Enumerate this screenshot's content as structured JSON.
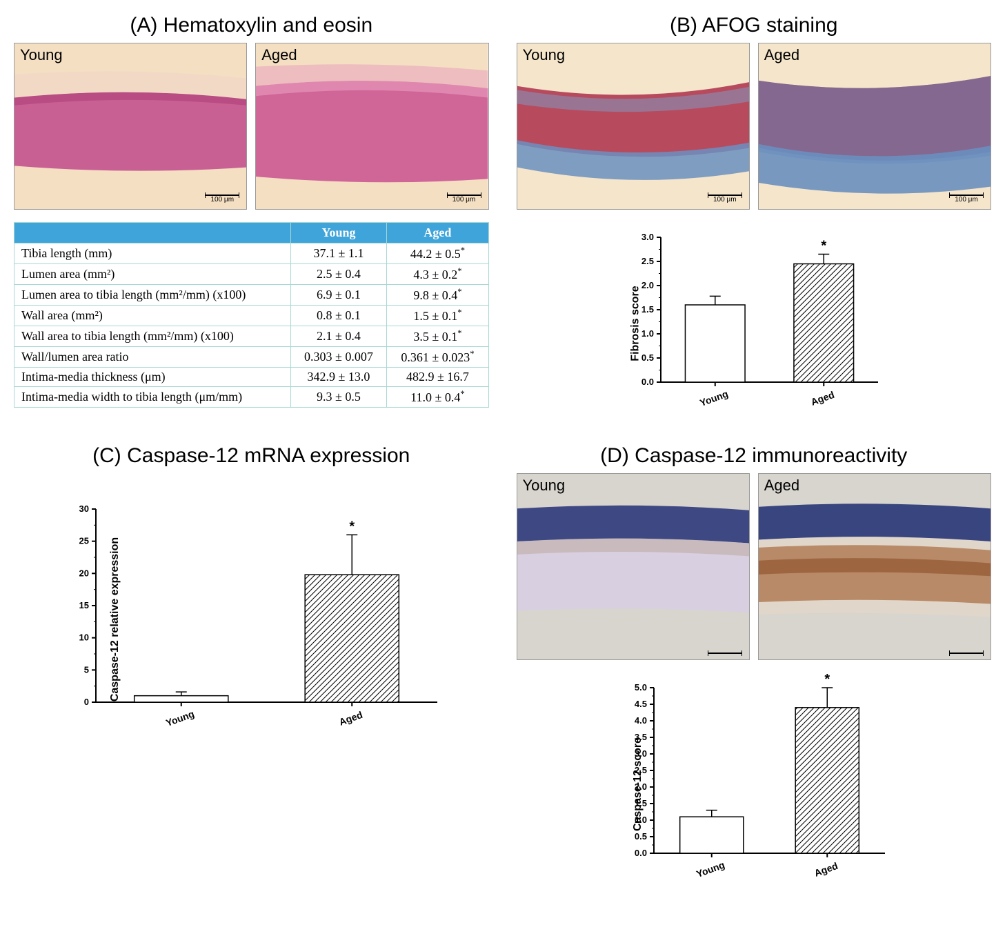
{
  "panelA": {
    "title": "(A) Hematoxylin and eosin",
    "young_label": "Young",
    "aged_label": "Aged",
    "young_bg": "#f4dfc2",
    "aged_bg": "#f4dfc2",
    "young_band": "#d66a9a",
    "aged_band": "#d66a9a",
    "scale_text": "100 μm",
    "table": {
      "headers": [
        "",
        "Young",
        "Aged"
      ],
      "rows": [
        [
          "Tibia length (mm)",
          "37.1 ± 1.1",
          "44.2 ± 0.5*"
        ],
        [
          "Lumen area (mm²)",
          "2.5 ± 0.4",
          "4.3 ± 0.2*"
        ],
        [
          "Lumen area to tibia length (mm²/mm) (x100)",
          "6.9 ± 0.1",
          "9.8 ± 0.4*"
        ],
        [
          "Wall area (mm²)",
          "0.8 ± 0.1",
          "1.5 ± 0.1*"
        ],
        [
          "Wall area to tibia length (mm²/mm) (x100)",
          "2.1 ± 0.4",
          "3.5 ± 0.1*"
        ],
        [
          "Wall/lumen area ratio",
          "0.303 ± 0.007",
          "0.361 ± 0.023*"
        ],
        [
          "Intima-media thickness (μm)",
          "342.9 ± 13.0",
          "482.9 ± 16.7"
        ],
        [
          "Intima-media width to tibia length (μm/mm)",
          "9.3 ± 0.5",
          "11.0 ± 0.4*"
        ]
      ]
    }
  },
  "panelB": {
    "title": "(B) AFOG staining",
    "young_label": "Young",
    "aged_label": "Aged",
    "young_bg": "#f4e5cb",
    "aged_bg": "#f4e5cb",
    "scale_text": "100 μm",
    "chart": {
      "ylabel": "Fibrosis score",
      "ymax": 3.0,
      "ytick_step": 0.5,
      "categories": [
        "Young",
        "Aged"
      ],
      "values": [
        1.6,
        2.45
      ],
      "errors": [
        0.18,
        0.2
      ],
      "fills": [
        "open",
        "hatch"
      ],
      "sig": [
        null,
        "*"
      ]
    }
  },
  "panelC": {
    "title": "(C) Caspase-12 mRNA expression",
    "chart": {
      "ylabel": "Caspase-12 relative expression",
      "ymax": 30,
      "ytick_step": 5,
      "categories": [
        "Young",
        "Aged"
      ],
      "values": [
        1.0,
        19.8
      ],
      "errors": [
        0.6,
        6.2
      ],
      "fills": [
        "open",
        "hatch"
      ],
      "sig": [
        null,
        "*"
      ]
    }
  },
  "panelD": {
    "title": "(D) Caspase-12 immunoreactivity",
    "young_label": "Young",
    "aged_label": "Aged",
    "bg": "#d8d5cf",
    "chart": {
      "ylabel": "Caspase-12 score",
      "ymax": 5.0,
      "ytick_step": 0.5,
      "categories": [
        "Young",
        "Aged"
      ],
      "values": [
        1.1,
        4.4
      ],
      "errors": [
        0.2,
        0.6
      ],
      "fills": [
        "open",
        "hatch"
      ],
      "sig": [
        null,
        "*"
      ]
    }
  },
  "colors": {
    "header_bg": "#3fa4d9",
    "table_border": "#a7d8d3"
  }
}
